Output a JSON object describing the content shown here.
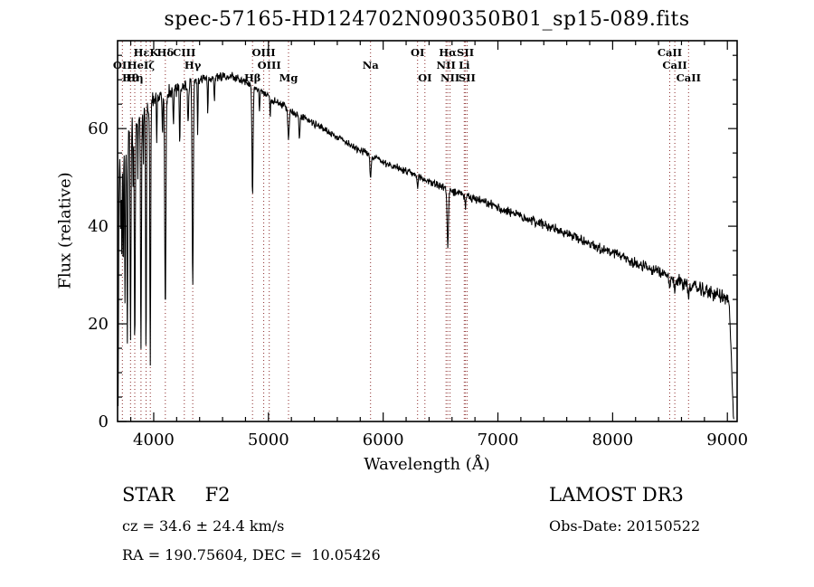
{
  "title": "spec-57165-HD124702N090350B01_sp15-089.fits",
  "footer": {
    "class_label": "STAR     F2",
    "survey": "LAMOST DR3",
    "cz": "cz = 34.6 ± 24.4 km/s",
    "obs_date": "Obs-Date: 20150522",
    "ra_dec": "RA = 190.75604, DEC =  10.05426"
  },
  "chart_data": {
    "type": "line",
    "title": "spec-57165-HD124702N090350B01_sp15-089.fits",
    "xlabel": "Wavelength (Å)",
    "ylabel": "Flux (relative)",
    "xlim": [
      3685,
      9085
    ],
    "ylim": [
      0,
      78
    ],
    "xticks": [
      4000,
      5000,
      6000,
      7000,
      8000,
      9000
    ],
    "yticks": [
      0,
      20,
      40,
      60
    ],
    "grid": false,
    "legend": "none",
    "line_color": "#000000",
    "marker_line_color": "#8b2a2a",
    "continuum": [
      [
        3690,
        2
      ],
      [
        3697,
        46
      ],
      [
        3705,
        54
      ],
      [
        3720,
        57
      ],
      [
        3745,
        58.5
      ],
      [
        3780,
        60
      ],
      [
        3820,
        61.5
      ],
      [
        3860,
        62.5
      ],
      [
        3900,
        63.5
      ],
      [
        3950,
        64.5
      ],
      [
        4000,
        66
      ],
      [
        4080,
        66.8
      ],
      [
        4160,
        67.6
      ],
      [
        4240,
        68.4
      ],
      [
        4320,
        69.2
      ],
      [
        4400,
        70
      ],
      [
        4480,
        70.3
      ],
      [
        4560,
        70.6
      ],
      [
        4640,
        70.8
      ],
      [
        4720,
        70.4
      ],
      [
        4800,
        69.6
      ],
      [
        4880,
        68.4
      ],
      [
        4960,
        67.2
      ],
      [
        5040,
        65.8
      ],
      [
        5120,
        64.8
      ],
      [
        5200,
        63.6
      ],
      [
        5280,
        62.6
      ],
      [
        5360,
        61.5
      ],
      [
        5440,
        60.5
      ],
      [
        5520,
        59.4
      ],
      [
        5600,
        58.3
      ],
      [
        5680,
        57.2
      ],
      [
        5760,
        56.1
      ],
      [
        5840,
        55.2
      ],
      [
        5920,
        54.2
      ],
      [
        6000,
        53.2
      ],
      [
        6080,
        52.4
      ],
      [
        6160,
        51.6
      ],
      [
        6240,
        50.8
      ],
      [
        6320,
        50
      ],
      [
        6400,
        49.2
      ],
      [
        6480,
        48.4
      ],
      [
        6560,
        47.6
      ],
      [
        6640,
        46.9
      ],
      [
        6720,
        46.2
      ],
      [
        6800,
        45.5
      ],
      [
        6880,
        44.9
      ],
      [
        6960,
        44.2
      ],
      [
        7040,
        43.5
      ],
      [
        7120,
        42.8
      ],
      [
        7200,
        42.1
      ],
      [
        7280,
        41.4
      ],
      [
        7360,
        40.7
      ],
      [
        7440,
        40
      ],
      [
        7520,
        39.2
      ],
      [
        7600,
        38.5
      ],
      [
        7680,
        37.7
      ],
      [
        7760,
        36.9
      ],
      [
        7840,
        36.1
      ],
      [
        7920,
        35.3
      ],
      [
        8000,
        34.5
      ],
      [
        8080,
        33.7
      ],
      [
        8160,
        32.9
      ],
      [
        8240,
        32.1
      ],
      [
        8320,
        31.3
      ],
      [
        8400,
        30.5
      ],
      [
        8480,
        29.8
      ],
      [
        8560,
        29
      ],
      [
        8640,
        28.3
      ],
      [
        8720,
        27.5
      ],
      [
        8800,
        26.8
      ],
      [
        8880,
        26.2
      ],
      [
        8950,
        25.6
      ],
      [
        9000,
        25
      ],
      [
        9015,
        23.5
      ],
      [
        9030,
        17
      ],
      [
        9042,
        8
      ],
      [
        9052,
        1
      ],
      [
        9058,
        0
      ]
    ],
    "absorption_lines": [
      [
        3712,
        18,
        3
      ],
      [
        3722,
        22,
        3
      ],
      [
        3734,
        28,
        3
      ],
      [
        3750,
        36,
        3.5
      ],
      [
        3770,
        42,
        4
      ],
      [
        3798,
        45,
        4
      ],
      [
        3820,
        14,
        2.5
      ],
      [
        3835,
        48,
        4
      ],
      [
        3862,
        12,
        2.5
      ],
      [
        3889,
        50,
        4
      ],
      [
        3910,
        10,
        2.5
      ],
      [
        3933,
        52,
        3.5
      ],
      [
        3970,
        52,
        4
      ],
      [
        4026,
        8,
        3
      ],
      [
        4077,
        9,
        2.5
      ],
      [
        4101,
        44,
        5
      ],
      [
        4172,
        7,
        3
      ],
      [
        4227,
        12,
        3
      ],
      [
        4300,
        8,
        4
      ],
      [
        4340,
        42,
        5
      ],
      [
        4383,
        10,
        3
      ],
      [
        4471,
        7,
        3
      ],
      [
        4530,
        5,
        3
      ],
      [
        4861,
        22,
        5
      ],
      [
        4922,
        5,
        3
      ],
      [
        5015,
        4,
        3
      ],
      [
        5175,
        6,
        6
      ],
      [
        5270,
        5,
        4
      ],
      [
        5890,
        5,
        5
      ],
      [
        6300,
        3,
        4
      ],
      [
        6563,
        12,
        6
      ],
      [
        6717,
        2.5,
        4
      ],
      [
        8498,
        2.5,
        5
      ],
      [
        8542,
        3.5,
        5
      ],
      [
        8662,
        3,
        5
      ]
    ],
    "noise_profile": [
      [
        3690,
        2.4
      ],
      [
        4050,
        2.2
      ],
      [
        4300,
        1.4
      ],
      [
        4700,
        1.0
      ],
      [
        5500,
        0.9
      ],
      [
        6500,
        1.0
      ],
      [
        7500,
        1.3
      ],
      [
        8300,
        1.5
      ],
      [
        9060,
        1.9
      ]
    ],
    "line_markers": [
      {
        "label": "OII",
        "wl": 3727,
        "row": 2
      },
      {
        "label": "Hθ",
        "wl": 3798,
        "row": 3
      },
      {
        "label": "Hη",
        "wl": 3835,
        "row": 3
      },
      {
        "label": "HeIζ",
        "wl": 3889,
        "row": 2
      },
      {
        "label": "HεK",
        "wl": 3933,
        "row": 1
      },
      {
        "label": "",
        "wl": 3970,
        "row": 1
      },
      {
        "label": "Hδ",
        "wl": 4101,
        "row": 1
      },
      {
        "label": "CIII",
        "wl": 4267,
        "row": 1
      },
      {
        "label": "Hγ",
        "wl": 4340,
        "row": 2
      },
      {
        "label": "Hβ",
        "wl": 4861,
        "row": 3
      },
      {
        "label": "OIII",
        "wl": 4959,
        "row": 1
      },
      {
        "label": "OIII",
        "wl": 5007,
        "row": 2
      },
      {
        "label": "Mg",
        "wl": 5175,
        "row": 3
      },
      {
        "label": "Na",
        "wl": 5890,
        "row": 2
      },
      {
        "label": "OI",
        "wl": 6300,
        "row": 1
      },
      {
        "label": "OI",
        "wl": 6364,
        "row": 3
      },
      {
        "label": "NII",
        "wl": 6548,
        "row": 2
      },
      {
        "label": "Hα",
        "wl": 6563,
        "row": 1
      },
      {
        "label": "NII",
        "wl": 6583,
        "row": 3
      },
      {
        "label": "Li",
        "wl": 6707,
        "row": 2
      },
      {
        "label": "SII",
        "wl": 6717,
        "row": 1
      },
      {
        "label": "SII",
        "wl": 6731,
        "row": 3
      },
      {
        "label": "CaII",
        "wl": 8498,
        "row": 1
      },
      {
        "label": "CaII",
        "wl": 8542,
        "row": 2
      },
      {
        "label": "CaII",
        "wl": 8662,
        "row": 3
      }
    ]
  }
}
